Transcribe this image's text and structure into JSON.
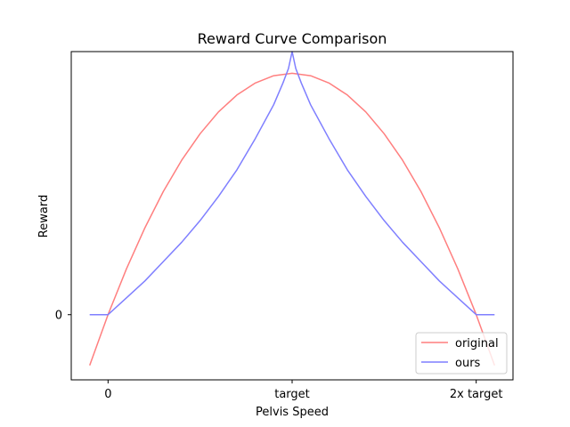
{
  "chart_data": {
    "type": "line",
    "title": "Reward Curve Comparison",
    "xlabel": "Pelvis Speed",
    "ylabel": "Reward",
    "x_ticks": [
      "0",
      "target",
      "2x target"
    ],
    "x_tick_values": [
      0,
      1,
      2
    ],
    "y_ticks": [
      "0"
    ],
    "y_tick_values": [
      0
    ],
    "xlim": [
      -0.2,
      2.2
    ],
    "ylim": [
      -0.27,
      1.09
    ],
    "grid": false,
    "legend_position": "lower-right",
    "series": [
      {
        "name": "original",
        "color": "#ff7f7f",
        "x": [
          -0.1,
          0.0,
          0.1,
          0.2,
          0.3,
          0.4,
          0.5,
          0.6,
          0.7,
          0.8,
          0.9,
          1.0,
          1.1,
          1.2,
          1.3,
          1.4,
          1.5,
          1.6,
          1.7,
          1.8,
          1.9,
          2.0,
          2.1
        ],
        "values": [
          -0.21,
          0.0,
          0.19,
          0.36,
          0.51,
          0.64,
          0.75,
          0.84,
          0.91,
          0.96,
          0.99,
          1.0,
          0.99,
          0.96,
          0.91,
          0.84,
          0.75,
          0.64,
          0.51,
          0.36,
          0.19,
          0.0,
          -0.21
        ]
      },
      {
        "name": "ours",
        "color": "#7f7fff",
        "x": [
          -0.1,
          0.0,
          0.1,
          0.2,
          0.3,
          0.4,
          0.5,
          0.6,
          0.7,
          0.8,
          0.9,
          0.95,
          0.98,
          1.0,
          1.02,
          1.05,
          1.1,
          1.2,
          1.3,
          1.4,
          1.5,
          1.6,
          1.7,
          1.8,
          1.9,
          2.0,
          2.1
        ],
        "values": [
          0.0,
          0.0,
          0.07,
          0.14,
          0.22,
          0.3,
          0.39,
          0.49,
          0.6,
          0.73,
          0.87,
          0.96,
          1.02,
          1.09,
          1.02,
          0.96,
          0.87,
          0.73,
          0.6,
          0.49,
          0.39,
          0.3,
          0.22,
          0.14,
          0.07,
          0.0,
          0.0
        ]
      }
    ]
  }
}
